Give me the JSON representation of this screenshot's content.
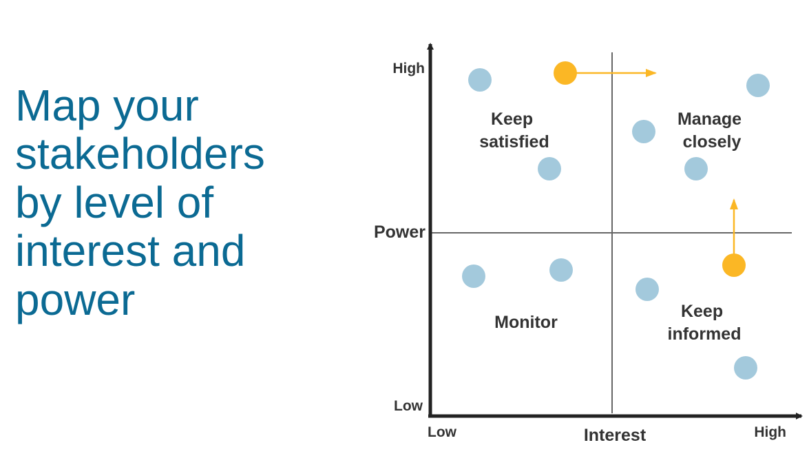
{
  "title_lines": [
    "Map your",
    "stakeholders",
    "by level of",
    "interest and",
    "power"
  ],
  "axes": {
    "y_label": "Power",
    "y_high": "High",
    "y_low": "Low",
    "x_label": "Interest",
    "x_low": "Low",
    "x_high": "High"
  },
  "quadrants": {
    "top_left": [
      "Keep",
      "satisfied"
    ],
    "top_right": [
      "Manage",
      "closely"
    ],
    "bottom_left": [
      "Monitor"
    ],
    "bottom_right": [
      "Keep",
      "informed"
    ]
  },
  "colors": {
    "title": "#0b6a93",
    "stakeholder": "#a3c9dc",
    "highlighted_stakeholder": "#fbb725",
    "axis": "#222222",
    "divider": "#666666",
    "label": "#333333"
  }
}
